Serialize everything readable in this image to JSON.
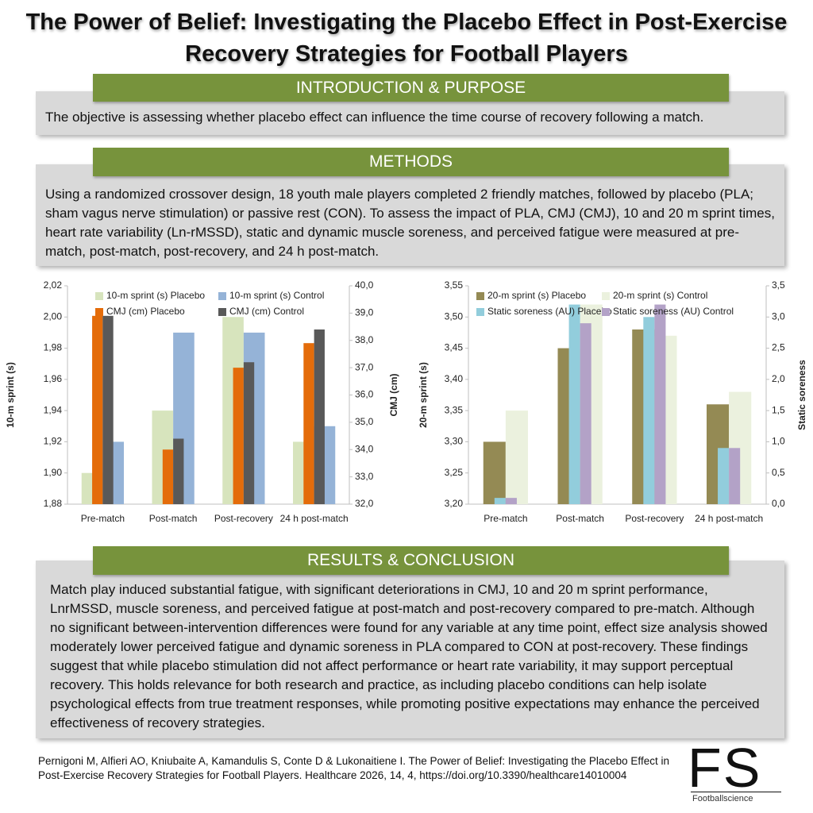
{
  "title": "The Power of Belief: Investigating the Placebo Effect in Post-Exercise Recovery Strategies for Football Players",
  "introduction": {
    "heading": "INTRODUCTION & PURPOSE",
    "text": "The objective is assessing whether placebo effect can influence the time course of recovery following a match."
  },
  "methods": {
    "heading": "METHODS",
    "text": "Using a randomized crossover design, 18 youth male players completed 2 friendly matches, followed by placebo (PLA; sham vagus nerve stimulation) or passive rest (CON). To assess the impact of PLA, CMJ (CMJ), 10 and 20 m sprint times, heart rate variability (Ln-rMSSD), static and dynamic muscle soreness, and perceived fatigue were measured at pre-match, post-match, post-recovery, and 24 h post-match."
  },
  "chart_data": [
    {
      "type": "bar",
      "categories": [
        "Pre-match",
        "Post-match",
        "Post-recovery",
        "24 h post-match"
      ],
      "ylabel": "10-m sprint (s)",
      "y2label": "CMJ (cm)",
      "ylim": [
        1.88,
        2.02
      ],
      "yticks": [
        {
          "value": 1.88,
          "label": "1,88"
        },
        {
          "value": 1.9,
          "label": "1,90"
        },
        {
          "value": 1.92,
          "label": "1,92"
        },
        {
          "value": 1.94,
          "label": "1,94"
        },
        {
          "value": 1.96,
          "label": "1,96"
        },
        {
          "value": 1.98,
          "label": "1,98"
        },
        {
          "value": 2.0,
          "label": "2,00"
        },
        {
          "value": 2.02,
          "label": "2,02"
        }
      ],
      "y2lim": [
        32,
        40
      ],
      "y2ticks": [
        {
          "value": 32,
          "label": "32,0"
        },
        {
          "value": 33,
          "label": "33,0"
        },
        {
          "value": 34,
          "label": "34,0"
        },
        {
          "value": 35,
          "label": "35,0"
        },
        {
          "value": 36,
          "label": "36,0"
        },
        {
          "value": 37,
          "label": "37,0"
        },
        {
          "value": 38,
          "label": "38,0"
        },
        {
          "value": 39,
          "label": "39,0"
        },
        {
          "value": 40,
          "label": "40,0"
        }
      ],
      "series": [
        {
          "name": "10-m sprint (s) Placebo",
          "color": "#d7e4bd",
          "values": [
            1.9,
            1.94,
            2.0,
            1.92
          ]
        },
        {
          "name": "10-m sprint (s) Control",
          "color": "#95b3d7",
          "values": [
            1.92,
            1.99,
            1.99,
            1.93
          ]
        },
        {
          "name": "CMJ (cm) Placebo",
          "color": "#e46c0a",
          "axis": "y2",
          "values": [
            38.9,
            34.0,
            37.0,
            37.9
          ]
        },
        {
          "name": "CMJ (cm) Control",
          "color": "#595959",
          "axis": "y2",
          "values": [
            38.9,
            34.4,
            37.2,
            38.4
          ]
        }
      ]
    },
    {
      "type": "bar",
      "categories": [
        "Pre-match",
        "Post-match",
        "Post-recovery",
        "24 h post-match"
      ],
      "ylabel": "20-m sprint (s)",
      "y2label": "Static soreness",
      "ylim": [
        3.2,
        3.55
      ],
      "yticks": [
        {
          "value": 3.2,
          "label": "3,20"
        },
        {
          "value": 3.25,
          "label": "3,25"
        },
        {
          "value": 3.3,
          "label": "3,30"
        },
        {
          "value": 3.35,
          "label": "3,35"
        },
        {
          "value": 3.4,
          "label": "3,40"
        },
        {
          "value": 3.45,
          "label": "3,45"
        },
        {
          "value": 3.5,
          "label": "3,50"
        },
        {
          "value": 3.55,
          "label": "3,55"
        }
      ],
      "y2lim": [
        0,
        3.5
      ],
      "y2ticks": [
        {
          "value": 0,
          "label": "0,0"
        },
        {
          "value": 0.5,
          "label": "0,5"
        },
        {
          "value": 1,
          "label": "1,0"
        },
        {
          "value": 1.5,
          "label": "1,5"
        },
        {
          "value": 2,
          "label": "2,0"
        },
        {
          "value": 2.5,
          "label": "2,5"
        },
        {
          "value": 3,
          "label": "3,0"
        },
        {
          "value": 3.5,
          "label": "3,5"
        }
      ],
      "series": [
        {
          "name": "20-m sprint (s) Placebo",
          "color": "#948a54",
          "values": [
            3.3,
            3.45,
            3.48,
            3.36
          ]
        },
        {
          "name": "20-m sprint (s) Control",
          "color": "#ebf1de",
          "values": [
            3.35,
            3.52,
            3.47,
            3.38
          ]
        },
        {
          "name": "Static soreness (AU) Placebo",
          "color": "#92cddc",
          "axis": "y2",
          "values": [
            0.1,
            3.2,
            3.0,
            0.9
          ]
        },
        {
          "name": "Static soreness (AU) Control",
          "color": "#b3a2c7",
          "axis": "y2",
          "values": [
            0.1,
            2.9,
            3.2,
            0.9
          ]
        }
      ]
    }
  ],
  "results": {
    "heading": "RESULTS & CONCLUSION",
    "text": "Match play induced substantial fatigue, with significant deteriorations in CMJ, 10 and 20 m sprint performance, LnrMSSD, muscle soreness, and perceived fatigue at post-match and post-recovery compared to pre-match. Although no significant between-intervention differences were found for any variable at any time point, effect size analysis showed moderately lower perceived fatigue and dynamic soreness in PLA compared to CON at post-recovery. These findings suggest that while placebo stimulation did not affect performance or heart rate variability, it may support perceptual recovery. This holds relevance for both research and practice, as including placebo conditions can help isolate psychological effects from true treatment responses, while promoting positive expectations may enhance the perceived effectiveness of recovery strategies."
  },
  "citation": "Pernigoni M, Alfieri AO, Kniubaite A, Kamandulis S, Conte D & Lukonaitiene I. The Power of Belief: Investigating the Placebo Effect in Post-Exercise Recovery Strategies for Football Players. Healthcare 2026, 14, 4, https://doi.org/10.3390/healthcare14010004",
  "logo": {
    "mark": "FS",
    "name": "Footballscience"
  }
}
